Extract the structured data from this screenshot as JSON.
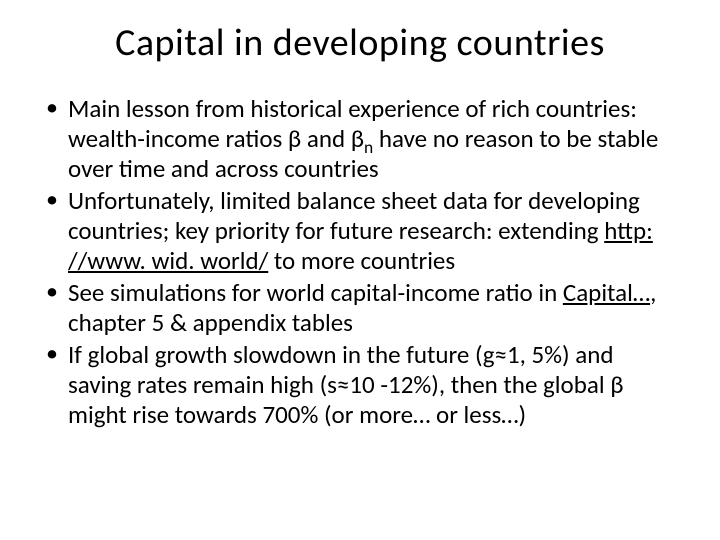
{
  "slide": {
    "title": "Capital in developing countries",
    "bullets": [
      {
        "pre": "Main lesson from historical experience of rich countries: wealth-income ratios β and β",
        "sub": "n",
        "post": " have no reason to be stable over time and across countries"
      },
      {
        "pre": "Unfortunately, limited balance sheet data for developing countries; key priority for future research: extending ",
        "link": "http: //www. wid. world/",
        "post": " to more countries"
      },
      {
        "pre": "See simulations for world capital-income ratio in ",
        "link": "Capital…",
        "post": ", chapter 5 & appendix tables"
      },
      {
        "pre": "If global growth slowdown in the future (g≈1, 5%) and saving rates remain high (s≈10 -12%), then the global β might rise towards 700% (or more… or less…)"
      }
    ]
  },
  "style": {
    "background_color": "#ffffff",
    "text_color": "#000000",
    "title_fontsize": 38,
    "body_fontsize": 25,
    "font_family": "Calibri"
  }
}
